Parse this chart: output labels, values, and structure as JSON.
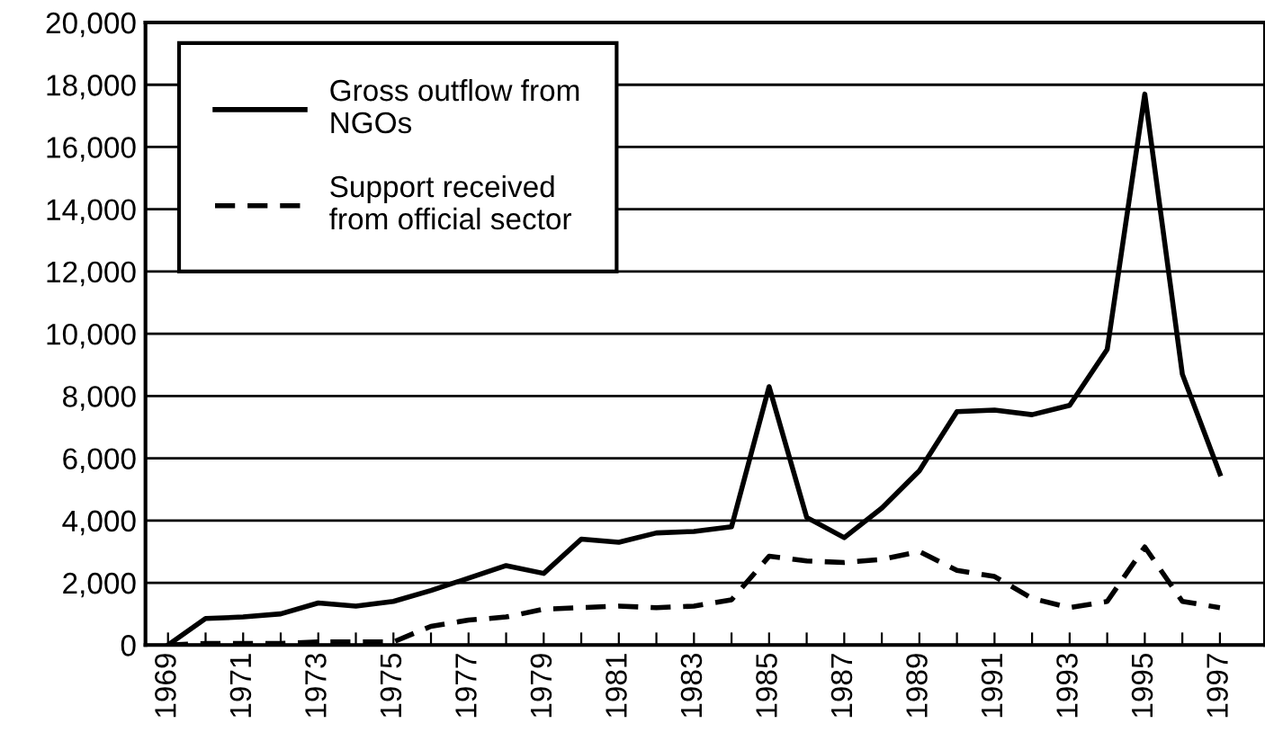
{
  "chart_data": {
    "type": "line",
    "x": [
      1969,
      1970,
      1971,
      1972,
      1973,
      1974,
      1975,
      1976,
      1977,
      1978,
      1979,
      1980,
      1981,
      1982,
      1983,
      1984,
      1985,
      1986,
      1987,
      1988,
      1989,
      1990,
      1991,
      1992,
      1993,
      1994,
      1995,
      1996,
      1997
    ],
    "series": [
      {
        "name": "Gross outflow from\nNGOs",
        "color": "#000000",
        "line_style": "solid",
        "values": [
          0,
          850,
          900,
          1000,
          1350,
          1250,
          1400,
          1750,
          2150,
          2550,
          2300,
          3400,
          3300,
          3600,
          3650,
          3800,
          8300,
          4100,
          3450,
          4400,
          5600,
          7500,
          7550,
          7400,
          7700,
          9500,
          17700,
          8700,
          5500
        ]
      },
      {
        "name": "Support received\nfrom official sector",
        "color": "#000000",
        "line_style": "dashed",
        "values": [
          0,
          50,
          50,
          50,
          100,
          100,
          100,
          600,
          800,
          900,
          1150,
          1200,
          1250,
          1200,
          1250,
          1450,
          2850,
          2700,
          2650,
          2750,
          3000,
          2400,
          2200,
          1500,
          1200,
          1400,
          3150,
          1400,
          1200
        ]
      }
    ],
    "xlim": [
      1968.4,
      1998.2
    ],
    "xticks": [
      1969,
      {
        "value": 1970,
        "label": null
      },
      1971,
      {
        "value": 1972,
        "label": null
      },
      1973,
      {
        "value": 1974,
        "label": null
      },
      1975,
      {
        "value": 1976,
        "label": null
      },
      1977,
      {
        "value": 1978,
        "label": null
      },
      1979,
      {
        "value": 1980,
        "label": null
      },
      1981,
      {
        "value": 1982,
        "label": null
      },
      1983,
      {
        "value": 1984,
        "label": null
      },
      1985,
      {
        "value": 1986,
        "label": null
      },
      1987,
      {
        "value": 1988,
        "label": null
      },
      1989,
      {
        "value": 1990,
        "label": null
      },
      1991,
      {
        "value": 1992,
        "label": null
      },
      1993,
      {
        "value": 1994,
        "label": null
      },
      1995,
      {
        "value": 1996,
        "label": null
      },
      1997
    ],
    "ylim": [
      0,
      20000
    ],
    "yticks": [
      {
        "value": 0,
        "label": "0"
      },
      {
        "value": 2000,
        "label": "2,000"
      },
      {
        "value": 4000,
        "label": "4,000"
      },
      {
        "value": 6000,
        "label": "6,000"
      },
      {
        "value": 8000,
        "label": "8,000"
      },
      {
        "value": 10000,
        "label": "10,000"
      },
      {
        "value": 12000,
        "label": "12,000"
      },
      {
        "value": 14000,
        "label": "14,000"
      },
      {
        "value": 16000,
        "label": "16,000"
      },
      {
        "value": 18000,
        "label": "18,000"
      },
      {
        "value": 20000,
        "label": "20,000"
      }
    ],
    "grid": "y",
    "legend": "top left"
  }
}
